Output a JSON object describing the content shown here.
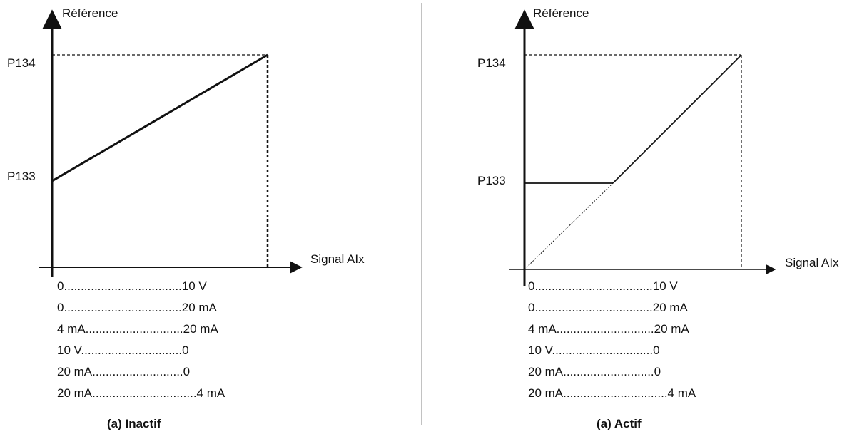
{
  "left_panel": {
    "y_axis_label": "Référence",
    "x_axis_label": "Signal AIx",
    "y_tick_top": "P134",
    "y_tick_bottom": "P133",
    "ranges": [
      "0...................................10 V",
      "0...................................20 mA",
      "4 mA.............................20 mA",
      "10 V..............................0",
      "20 mA...........................0",
      "20 mA...............................4 mA"
    ],
    "caption": "(a) Inactif"
  },
  "right_panel": {
    "y_axis_label": "Référence",
    "x_axis_label": "Signal AIx",
    "y_tick_top": "P134",
    "y_tick_bottom": "P133",
    "ranges": [
      "0...................................10 V",
      "0...................................20 mA",
      "4 mA.............................20 mA",
      "10 V..............................0",
      "20 mA...........................0",
      "20 mA...............................4 mA"
    ],
    "caption": "(a) Actif"
  },
  "colors": {
    "line": "#111111",
    "divider": "#999999"
  }
}
